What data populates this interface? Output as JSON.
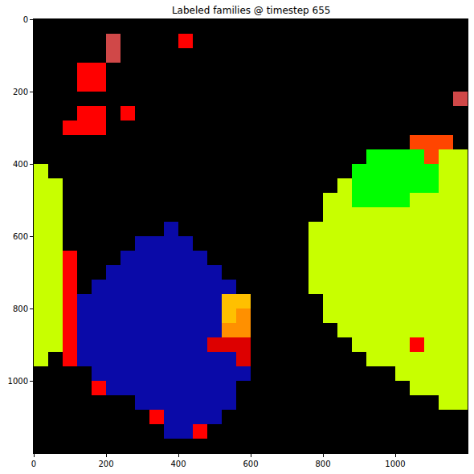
{
  "chart_data": {
    "type": "heatmap",
    "title": "Labeled families @ timestep 655",
    "x": [
      20,
      60,
      100,
      140,
      180,
      220,
      260,
      300,
      340,
      380,
      420,
      460,
      500,
      540,
      580,
      620,
      660,
      700,
      740,
      780,
      820,
      860,
      900,
      940,
      980,
      1020,
      1060,
      1100,
      1140,
      1180
    ],
    "y": [
      20,
      60,
      100,
      140,
      180,
      220,
      260,
      300,
      340,
      380,
      420,
      460,
      500,
      540,
      580,
      620,
      660,
      700,
      740,
      780,
      820,
      860,
      900,
      940,
      980,
      1020,
      1060,
      1100,
      1140,
      1180
    ],
    "colors": [
      "#000000",
      "#ff0000",
      "#0a0aa8",
      "#c8ff00",
      "#00ff00",
      "#ff4500",
      "#ffc000",
      "#ff9000",
      "#dd0000",
      "#d04848"
    ],
    "cells": [
      [
        0,
        0,
        0,
        0,
        0,
        0,
        0,
        0,
        0,
        0,
        0,
        0,
        0,
        0,
        0,
        0,
        0,
        0,
        0,
        0,
        0,
        0,
        0,
        0,
        0,
        0,
        0,
        0,
        0,
        0
      ],
      [
        0,
        0,
        0,
        0,
        0,
        9,
        0,
        0,
        0,
        0,
        1,
        0,
        0,
        0,
        0,
        0,
        0,
        0,
        0,
        0,
        0,
        0,
        0,
        0,
        0,
        0,
        0,
        0,
        0,
        0
      ],
      [
        0,
        0,
        0,
        0,
        0,
        9,
        0,
        0,
        0,
        0,
        0,
        0,
        0,
        0,
        0,
        0,
        0,
        0,
        0,
        0,
        0,
        0,
        0,
        0,
        0,
        0,
        0,
        0,
        0,
        0
      ],
      [
        0,
        0,
        0,
        1,
        1,
        0,
        0,
        0,
        0,
        0,
        0,
        0,
        0,
        0,
        0,
        0,
        0,
        0,
        0,
        0,
        0,
        0,
        0,
        0,
        0,
        0,
        0,
        0,
        0,
        0
      ],
      [
        0,
        0,
        0,
        1,
        1,
        0,
        0,
        0,
        0,
        0,
        0,
        0,
        0,
        0,
        0,
        0,
        0,
        0,
        0,
        0,
        0,
        0,
        0,
        0,
        0,
        0,
        0,
        0,
        0,
        0
      ],
      [
        0,
        0,
        0,
        0,
        0,
        0,
        0,
        0,
        0,
        0,
        0,
        0,
        0,
        0,
        0,
        0,
        0,
        0,
        0,
        0,
        0,
        0,
        0,
        0,
        0,
        0,
        0,
        0,
        0,
        9
      ],
      [
        0,
        0,
        0,
        1,
        1,
        0,
        1,
        0,
        0,
        0,
        0,
        0,
        0,
        0,
        0,
        0,
        0,
        0,
        0,
        0,
        0,
        0,
        0,
        0,
        0,
        0,
        0,
        0,
        0,
        0
      ],
      [
        0,
        0,
        1,
        1,
        1,
        0,
        0,
        0,
        0,
        0,
        0,
        0,
        0,
        0,
        0,
        0,
        0,
        0,
        0,
        0,
        0,
        0,
        0,
        0,
        0,
        0,
        0,
        0,
        0,
        0
      ],
      [
        0,
        0,
        0,
        0,
        0,
        0,
        0,
        0,
        0,
        0,
        0,
        0,
        0,
        0,
        0,
        0,
        0,
        0,
        0,
        0,
        0,
        0,
        0,
        0,
        0,
        0,
        5,
        5,
        5,
        0
      ],
      [
        0,
        0,
        0,
        0,
        0,
        0,
        0,
        0,
        0,
        0,
        0,
        0,
        0,
        0,
        0,
        0,
        0,
        0,
        0,
        0,
        0,
        0,
        0,
        4,
        4,
        4,
        4,
        5,
        3,
        3
      ],
      [
        3,
        0,
        0,
        0,
        0,
        0,
        0,
        0,
        0,
        0,
        0,
        0,
        0,
        0,
        0,
        0,
        0,
        0,
        0,
        0,
        0,
        0,
        4,
        4,
        4,
        4,
        4,
        4,
        3,
        3
      ],
      [
        3,
        3,
        0,
        0,
        0,
        0,
        0,
        0,
        0,
        0,
        0,
        0,
        0,
        0,
        0,
        0,
        0,
        0,
        0,
        0,
        0,
        3,
        4,
        4,
        4,
        4,
        4,
        4,
        3,
        3
      ],
      [
        3,
        3,
        0,
        0,
        0,
        0,
        0,
        0,
        0,
        0,
        0,
        0,
        0,
        0,
        0,
        0,
        0,
        0,
        0,
        0,
        3,
        3,
        4,
        4,
        4,
        4,
        3,
        3,
        3,
        3
      ],
      [
        3,
        3,
        0,
        0,
        0,
        0,
        0,
        0,
        0,
        0,
        0,
        0,
        0,
        0,
        0,
        0,
        0,
        0,
        0,
        0,
        3,
        3,
        3,
        3,
        3,
        3,
        3,
        3,
        3,
        3
      ],
      [
        3,
        3,
        0,
        0,
        0,
        0,
        0,
        0,
        0,
        2,
        0,
        0,
        0,
        0,
        0,
        0,
        0,
        0,
        0,
        3,
        3,
        3,
        3,
        3,
        3,
        3,
        3,
        3,
        3,
        3
      ],
      [
        3,
        3,
        0,
        0,
        0,
        0,
        0,
        2,
        2,
        2,
        2,
        0,
        0,
        0,
        0,
        0,
        0,
        0,
        0,
        3,
        3,
        3,
        3,
        3,
        3,
        3,
        3,
        3,
        3,
        3
      ],
      [
        3,
        3,
        1,
        0,
        0,
        0,
        2,
        2,
        2,
        2,
        2,
        2,
        0,
        0,
        0,
        0,
        0,
        0,
        0,
        3,
        3,
        3,
        3,
        3,
        3,
        3,
        3,
        3,
        3,
        3
      ],
      [
        3,
        3,
        1,
        0,
        0,
        2,
        2,
        2,
        2,
        2,
        2,
        2,
        2,
        0,
        0,
        0,
        0,
        0,
        0,
        3,
        3,
        3,
        3,
        3,
        3,
        3,
        3,
        3,
        3,
        3
      ],
      [
        3,
        3,
        1,
        0,
        2,
        2,
        2,
        2,
        2,
        2,
        2,
        2,
        2,
        2,
        0,
        0,
        0,
        0,
        0,
        3,
        3,
        3,
        3,
        3,
        3,
        3,
        3,
        3,
        3,
        3
      ],
      [
        3,
        3,
        1,
        2,
        2,
        2,
        2,
        2,
        2,
        2,
        2,
        2,
        2,
        6,
        6,
        0,
        0,
        0,
        0,
        0,
        3,
        3,
        3,
        3,
        3,
        3,
        3,
        3,
        3,
        3
      ],
      [
        3,
        3,
        1,
        2,
        2,
        2,
        2,
        2,
        2,
        2,
        2,
        2,
        2,
        6,
        7,
        0,
        0,
        0,
        0,
        0,
        3,
        3,
        3,
        3,
        3,
        3,
        3,
        3,
        3,
        3
      ],
      [
        3,
        3,
        1,
        2,
        2,
        2,
        2,
        2,
        2,
        2,
        2,
        2,
        2,
        7,
        7,
        0,
        0,
        0,
        0,
        0,
        0,
        3,
        3,
        3,
        3,
        3,
        3,
        3,
        3,
        3
      ],
      [
        3,
        3,
        1,
        2,
        2,
        2,
        2,
        2,
        2,
        2,
        2,
        2,
        8,
        8,
        8,
        0,
        0,
        0,
        0,
        0,
        0,
        0,
        3,
        3,
        3,
        3,
        1,
        3,
        3,
        3
      ],
      [
        3,
        0,
        1,
        2,
        2,
        2,
        2,
        2,
        2,
        2,
        2,
        2,
        2,
        2,
        8,
        0,
        0,
        0,
        0,
        0,
        0,
        0,
        0,
        3,
        3,
        3,
        3,
        3,
        3,
        3
      ],
      [
        0,
        0,
        0,
        0,
        2,
        2,
        2,
        2,
        2,
        2,
        2,
        2,
        2,
        2,
        2,
        0,
        0,
        0,
        0,
        0,
        0,
        0,
        0,
        0,
        0,
        3,
        3,
        3,
        3,
        3
      ],
      [
        0,
        0,
        0,
        0,
        1,
        2,
        2,
        2,
        2,
        2,
        2,
        2,
        2,
        2,
        0,
        0,
        0,
        0,
        0,
        0,
        0,
        0,
        0,
        0,
        0,
        0,
        3,
        3,
        3,
        3
      ],
      [
        0,
        0,
        0,
        0,
        0,
        0,
        0,
        2,
        2,
        2,
        2,
        2,
        2,
        2,
        0,
        0,
        0,
        0,
        0,
        0,
        0,
        0,
        0,
        0,
        0,
        0,
        0,
        0,
        3,
        3
      ],
      [
        0,
        0,
        0,
        0,
        0,
        0,
        0,
        0,
        1,
        2,
        2,
        2,
        2,
        0,
        0,
        0,
        0,
        0,
        0,
        0,
        0,
        0,
        0,
        0,
        0,
        0,
        0,
        0,
        0,
        0
      ],
      [
        0,
        0,
        0,
        0,
        0,
        0,
        0,
        0,
        0,
        2,
        2,
        1,
        0,
        0,
        0,
        0,
        0,
        0,
        0,
        0,
        0,
        0,
        0,
        0,
        0,
        0,
        0,
        0,
        0,
        0
      ],
      [
        0,
        0,
        0,
        0,
        0,
        0,
        0,
        0,
        0,
        0,
        0,
        0,
        0,
        0,
        0,
        0,
        0,
        0,
        0,
        0,
        0,
        0,
        0,
        0,
        0,
        0,
        0,
        0,
        0,
        0
      ]
    ],
    "xlim": [
      0,
      1200
    ],
    "ylim": [
      1200,
      0
    ],
    "xticks": [
      0,
      200,
      400,
      600,
      800,
      1000
    ],
    "yticks": [
      0,
      200,
      400,
      600,
      800,
      1000
    ]
  }
}
